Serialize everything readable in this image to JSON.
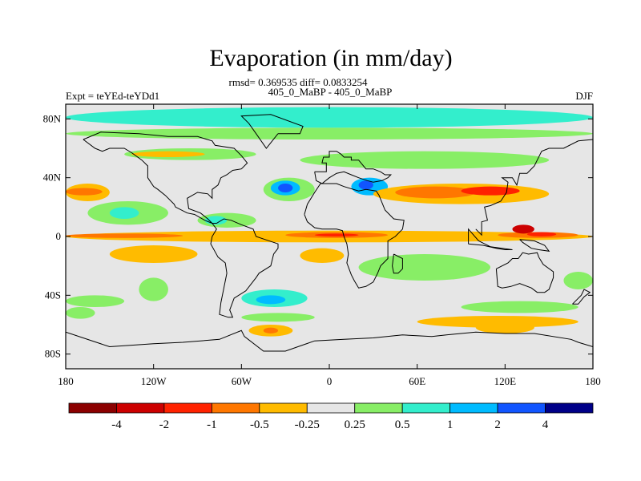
{
  "chart_data": {
    "type": "heatmap",
    "title": "Evaporation (in mm/day)",
    "stats_line": "rmsd= 0.369535 diff= 0.0833254",
    "left_label": "Expt = teYEd-teYDd1",
    "center_label": "405_0_MaBP - 405_0_MaBP",
    "right_label": "DJF",
    "xlim": [
      -180,
      180
    ],
    "ylim": [
      -90,
      90
    ],
    "x_ticks": [
      {
        "value": -180,
        "label": "180"
      },
      {
        "value": -120,
        "label": "120W"
      },
      {
        "value": -60,
        "label": "60W"
      },
      {
        "value": 0,
        "label": "0"
      },
      {
        "value": 60,
        "label": "60E"
      },
      {
        "value": 120,
        "label": "120E"
      },
      {
        "value": 180,
        "label": "180"
      }
    ],
    "y_ticks": [
      {
        "value": 80,
        "label": "80N"
      },
      {
        "value": 40,
        "label": "40N"
      },
      {
        "value": 0,
        "label": "0"
      },
      {
        "value": -40,
        "label": "40S"
      },
      {
        "value": -80,
        "label": "80S"
      }
    ],
    "colorbar": {
      "colors": [
        "#8b0000",
        "#cc0000",
        "#ff2200",
        "#ff7700",
        "#ffbb00",
        "#e6e6e6",
        "#88ee66",
        "#33eecc",
        "#00bbff",
        "#1155ff",
        "#000088"
      ],
      "labels": [
        "-4",
        "-2",
        "-1",
        "-0.5",
        "-0.25",
        "0.25",
        "0.5",
        "1",
        "2",
        "4"
      ]
    },
    "background_color": "#e6e6e6",
    "regions": [
      {
        "lon": [
          -180,
          180
        ],
        "lat": [
          74,
          88
        ],
        "level": 7
      },
      {
        "lon": [
          -180,
          180
        ],
        "lat": [
          66,
          74
        ],
        "level": 6
      },
      {
        "lon": [
          -140,
          -50
        ],
        "lat": [
          52,
          60
        ],
        "level": 6
      },
      {
        "lon": [
          -135,
          -85
        ],
        "lat": [
          54,
          58
        ],
        "level": 4
      },
      {
        "lon": [
          -20,
          150
        ],
        "lat": [
          46,
          58
        ],
        "level": 6
      },
      {
        "lon": [
          -180,
          -150
        ],
        "lat": [
          24,
          36
        ],
        "level": 4
      },
      {
        "lon": [
          -180,
          -155
        ],
        "lat": [
          28,
          33
        ],
        "level": 3
      },
      {
        "lon": [
          -165,
          -110
        ],
        "lat": [
          8,
          24
        ],
        "level": 6
      },
      {
        "lon": [
          -150,
          -130
        ],
        "lat": [
          12,
          20
        ],
        "level": 7
      },
      {
        "lon": [
          -90,
          -50
        ],
        "lat": [
          6,
          16
        ],
        "level": 6
      },
      {
        "lon": [
          -85,
          -70
        ],
        "lat": [
          8,
          14
        ],
        "level": 7
      },
      {
        "lon": [
          -45,
          -10
        ],
        "lat": [
          24,
          40
        ],
        "level": 6
      },
      {
        "lon": [
          -40,
          -20
        ],
        "lat": [
          28,
          38
        ],
        "level": 8
      },
      {
        "lon": [
          -35,
          -25
        ],
        "lat": [
          30,
          36
        ],
        "level": 9
      },
      {
        "lon": [
          15,
          40
        ],
        "lat": [
          28,
          40
        ],
        "level": 8
      },
      {
        "lon": [
          20,
          30
        ],
        "lat": [
          32,
          38
        ],
        "level": 9
      },
      {
        "lon": [
          30,
          150
        ],
        "lat": [
          22,
          36
        ],
        "level": 4
      },
      {
        "lon": [
          45,
          100
        ],
        "lat": [
          26,
          34
        ],
        "level": 3
      },
      {
        "lon": [
          90,
          130
        ],
        "lat": [
          28,
          34
        ],
        "level": 2
      },
      {
        "lon": [
          -180,
          180
        ],
        "lat": [
          -4,
          4
        ],
        "level": 4
      },
      {
        "lon": [
          -180,
          -100
        ],
        "lat": [
          -1,
          2
        ],
        "level": 3
      },
      {
        "lon": [
          -30,
          40
        ],
        "lat": [
          -1,
          3
        ],
        "level": 3
      },
      {
        "lon": [
          -10,
          20
        ],
        "lat": [
          0,
          2
        ],
        "level": 2
      },
      {
        "lon": [
          115,
          170
        ],
        "lat": [
          -1,
          3
        ],
        "level": 3
      },
      {
        "lon": [
          125,
          140
        ],
        "lat": [
          2,
          8
        ],
        "level": 1
      },
      {
        "lon": [
          135,
          155
        ],
        "lat": [
          0,
          3
        ],
        "level": 2
      },
      {
        "lon": [
          -150,
          -90
        ],
        "lat": [
          -18,
          -6
        ],
        "level": 4
      },
      {
        "lon": [
          -20,
          10
        ],
        "lat": [
          -18,
          -8
        ],
        "level": 4
      },
      {
        "lon": [
          20,
          110
        ],
        "lat": [
          -30,
          -12
        ],
        "level": 6
      },
      {
        "lon": [
          -130,
          -110
        ],
        "lat": [
          -44,
          -28
        ],
        "level": 6
      },
      {
        "lon": [
          -60,
          -15
        ],
        "lat": [
          -48,
          -36
        ],
        "level": 7
      },
      {
        "lon": [
          -50,
          -30
        ],
        "lat": [
          -46,
          -40
        ],
        "level": 8
      },
      {
        "lon": [
          -180,
          -140
        ],
        "lat": [
          -48,
          -40
        ],
        "level": 6
      },
      {
        "lon": [
          -60,
          -10
        ],
        "lat": [
          -58,
          -52
        ],
        "level": 6
      },
      {
        "lon": [
          -55,
          -25
        ],
        "lat": [
          -68,
          -60
        ],
        "level": 4
      },
      {
        "lon": [
          -45,
          -35
        ],
        "lat": [
          -66,
          -62
        ],
        "level": 3
      },
      {
        "lon": [
          60,
          170
        ],
        "lat": [
          -62,
          -54
        ],
        "level": 4
      },
      {
        "lon": [
          100,
          140
        ],
        "lat": [
          -66,
          -58
        ],
        "level": 4
      },
      {
        "lon": [
          90,
          170
        ],
        "lat": [
          -52,
          -44
        ],
        "level": 6
      },
      {
        "lon": [
          160,
          180
        ],
        "lat": [
          -36,
          -24
        ],
        "level": 6
      },
      {
        "lon": [
          -180,
          -160
        ],
        "lat": [
          -56,
          -48
        ],
        "level": 6
      }
    ]
  }
}
